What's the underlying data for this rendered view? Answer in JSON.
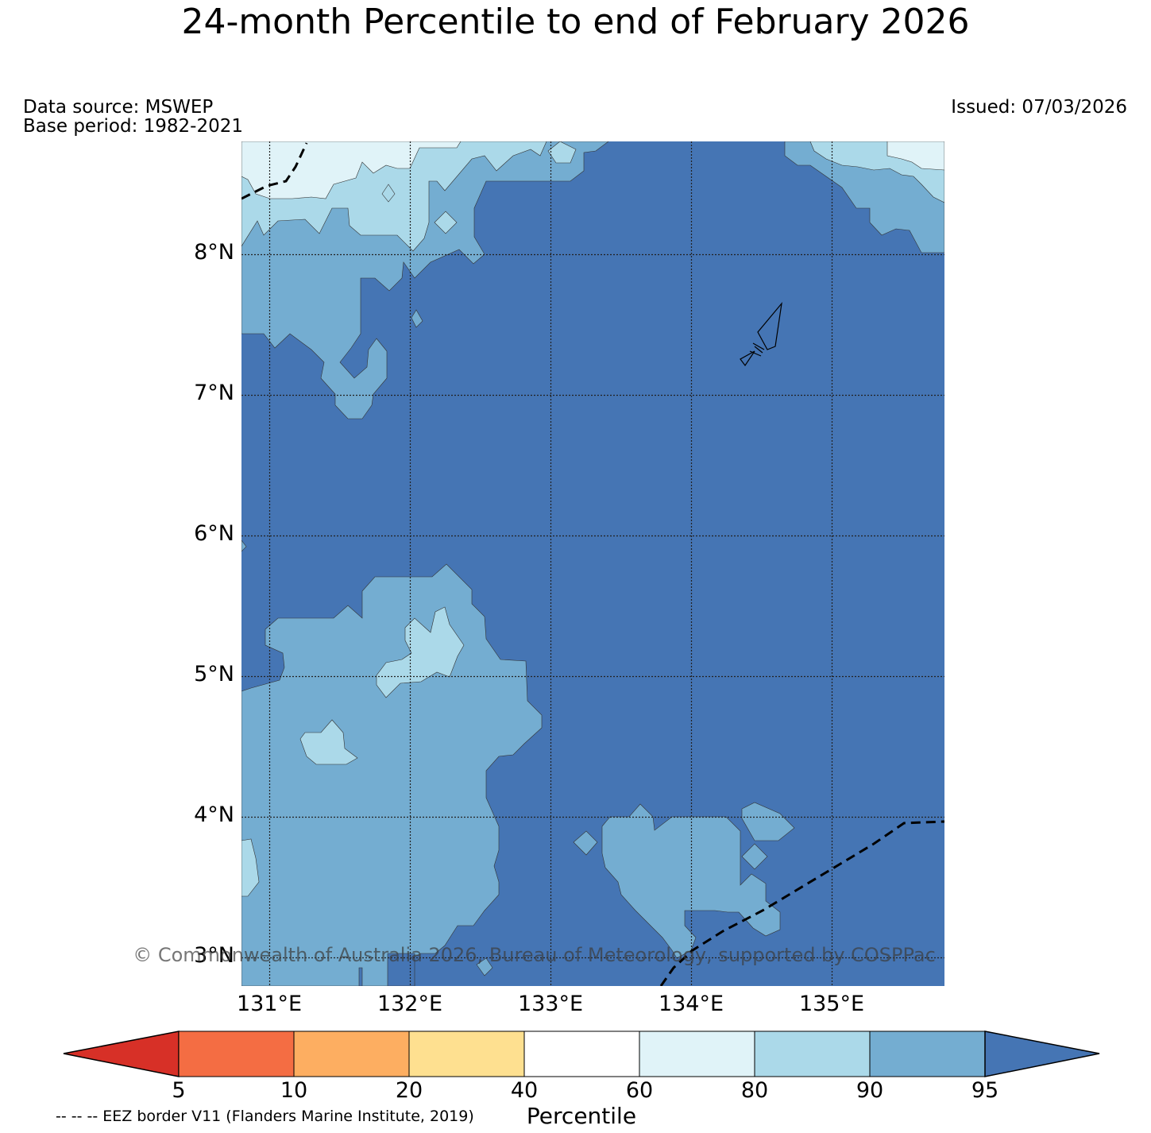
{
  "title": "24-month Percentile to end of February 2026",
  "data_source": "Data source: MSWEP",
  "base_period": "Base period: 1982-2021",
  "issued": "Issued: 07/03/2026",
  "copyright": "© Commonwealth of Australia 2026, Bureau of Meteorology, supported by COSPPac",
  "legend_note": "-- -- -- EEZ border V11 (Flanders Marine Institute, 2019)",
  "map": {
    "lat_labels": [
      "8°N",
      "7°N",
      "6°N",
      "5°N",
      "4°N",
      "3°N"
    ],
    "lon_labels": [
      "131°E",
      "132°E",
      "133°E",
      "134°E",
      "135°E"
    ]
  },
  "colorbar": {
    "title": "Percentile",
    "tick_labels": [
      "5",
      "10",
      "20",
      "40",
      "60",
      "80",
      "90",
      "95"
    ],
    "colors": [
      "#d73027",
      "#f46d43",
      "#fdae61",
      "#fee090",
      "#ffffff",
      "#e0f3f8",
      "#abd9e9",
      "#74add1",
      "#4575b4"
    ]
  }
}
